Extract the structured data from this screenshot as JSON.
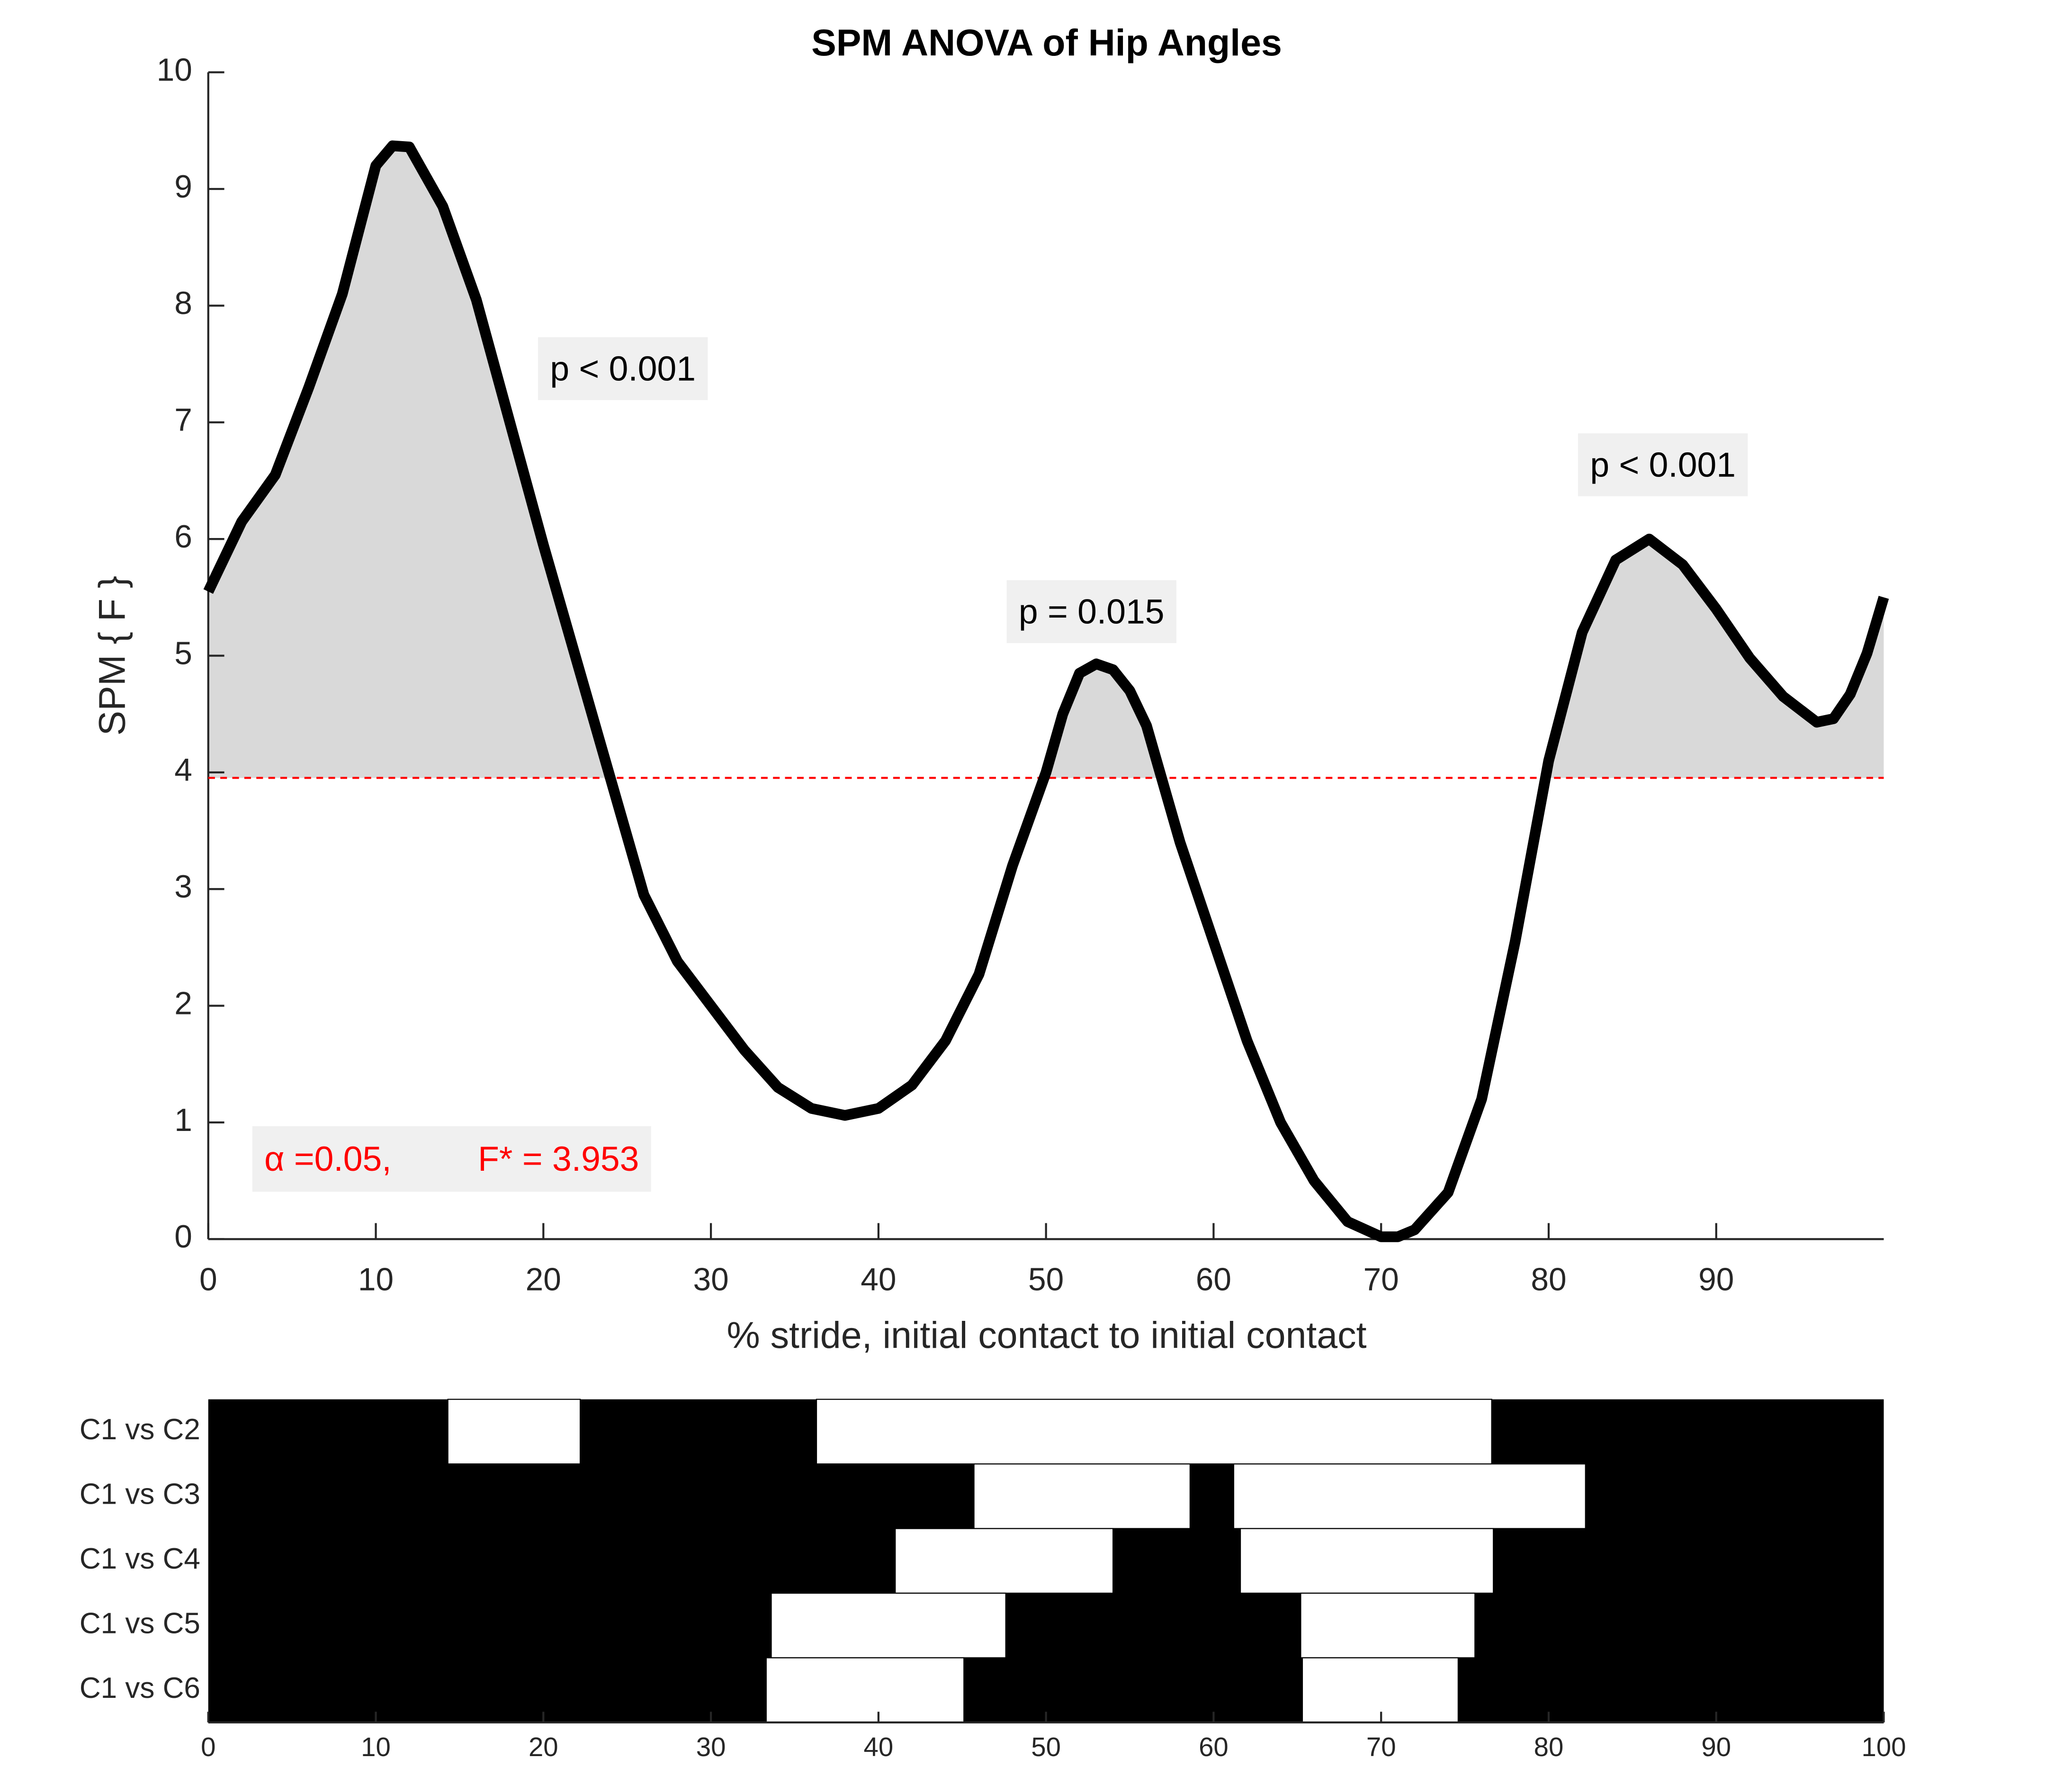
{
  "chart_data": [
    {
      "type": "line",
      "title": "SPM ANOVA of Hip Angles",
      "y_label": "SPM { F }",
      "x_label": "% stride, initial contact to initial contact",
      "x": [
        0,
        2,
        4,
        6,
        8,
        10,
        11,
        12,
        14,
        16,
        18,
        20,
        22,
        24,
        26,
        28,
        30,
        32,
        34,
        36,
        38,
        40,
        42,
        44,
        46,
        48,
        50,
        51,
        52,
        53,
        54,
        55,
        56,
        58,
        60,
        62,
        64,
        66,
        68,
        70,
        71,
        72,
        74,
        76,
        78,
        80,
        82,
        84,
        86,
        88,
        90,
        92,
        94,
        96,
        97,
        98,
        99,
        100
      ],
      "values": [
        5.55,
        6.15,
        6.55,
        7.3,
        8.1,
        9.2,
        9.37,
        9.36,
        8.85,
        8.05,
        7.0,
        5.95,
        4.95,
        3.95,
        2.95,
        2.38,
        2.0,
        1.62,
        1.3,
        1.12,
        1.06,
        1.12,
        1.32,
        1.7,
        2.27,
        3.2,
        4.0,
        4.5,
        4.85,
        4.93,
        4.88,
        4.7,
        4.4,
        3.4,
        2.55,
        1.7,
        1.0,
        0.5,
        0.15,
        0.02,
        0.02,
        0.08,
        0.4,
        1.2,
        2.55,
        4.1,
        5.2,
        5.82,
        6.0,
        5.78,
        5.4,
        4.98,
        4.65,
        4.43,
        4.46,
        4.67,
        5.02,
        5.5
      ],
      "color": "#000000",
      "fill_color": "#d9d9d9",
      "threshold": 3.953,
      "threshold_color": "#ff0000",
      "annotations": [
        "p < 0.001",
        "p = 0.015",
        "p < 0.001"
      ],
      "alpha_label": "α  =0.05,",
      "threshold_label": "F* = 3.953",
      "xlim": [
        0,
        100
      ],
      "xticks": [
        0,
        10,
        20,
        30,
        40,
        50,
        60,
        70,
        80,
        90
      ],
      "ylim": [
        0,
        10
      ],
      "yticks": [
        0,
        1,
        2,
        3,
        4,
        5,
        6,
        7,
        8,
        9,
        10
      ]
    },
    {
      "type": "interval",
      "categories": [
        "C1 vs C2",
        "C1 vs C3",
        "C1 vs C4",
        "C1 vs C5",
        "C1 vs C6"
      ],
      "intervals": [
        [
          [
            14.3,
            22.2
          ],
          [
            36.3,
            76.6
          ]
        ],
        [
          [
            45.7,
            58.6
          ],
          [
            61.2,
            82.2
          ]
        ],
        [
          [
            41.0,
            54.0
          ],
          [
            61.6,
            76.7
          ]
        ],
        [
          [
            33.6,
            47.6
          ],
          [
            65.2,
            75.6
          ]
        ],
        [
          [
            33.3,
            45.1
          ],
          [
            65.3,
            74.6
          ]
        ]
      ],
      "xlim": [
        0,
        100
      ],
      "xticks": [
        0,
        10,
        20,
        30,
        40,
        50,
        60,
        70,
        80,
        90,
        100
      ]
    }
  ]
}
